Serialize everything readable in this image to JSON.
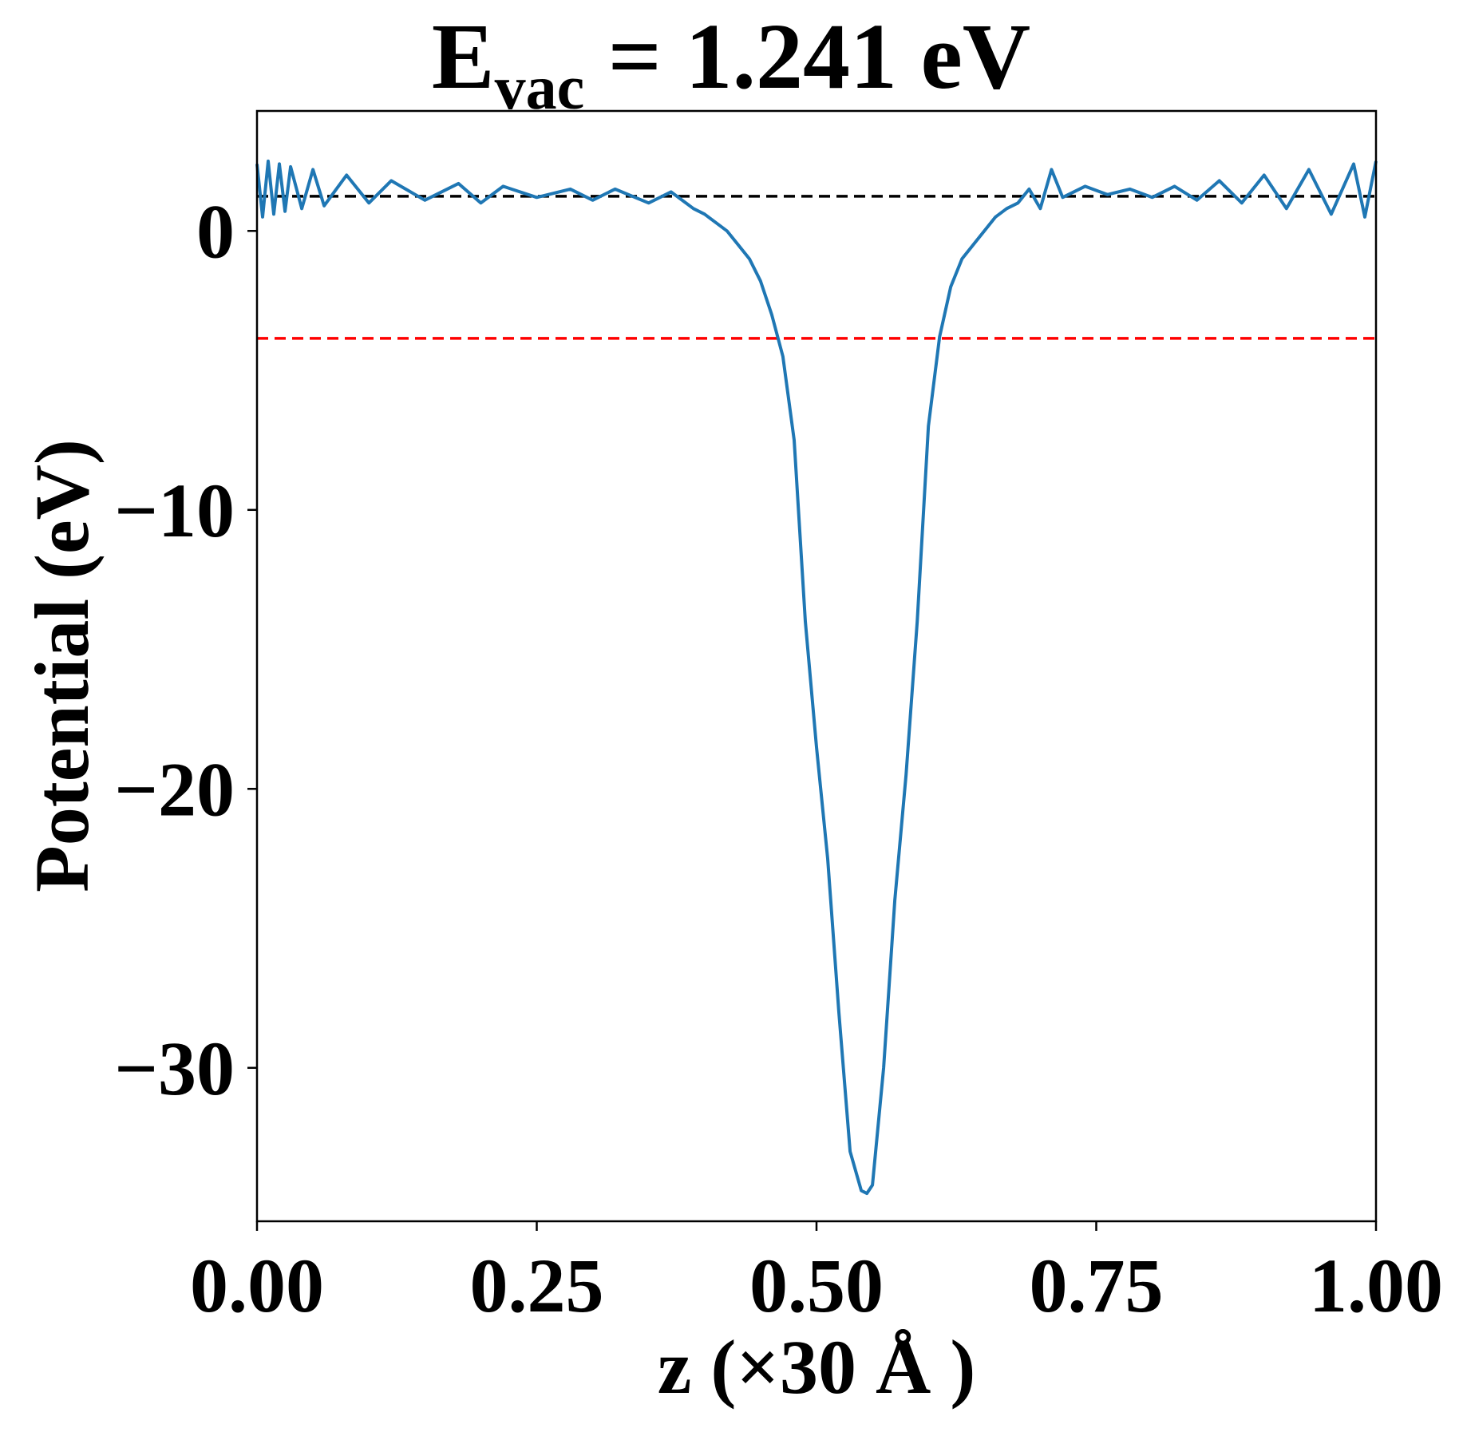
{
  "chart_data": {
    "type": "line",
    "title": {
      "main": "E",
      "subscript": "vac",
      "rest": " = 1.241 eV"
    },
    "xlabel": "z (×30 Å )",
    "ylabel": "Potential (eV)",
    "xlim": [
      0,
      1
    ],
    "ylim": [
      -35.5,
      4.3
    ],
    "xticks": [
      0,
      0.25,
      0.5,
      0.75,
      1.0
    ],
    "xtick_labels": [
      "0.00",
      "0.25",
      "0.50",
      "0.75",
      "1.00"
    ],
    "yticks": [
      0,
      -10,
      -20,
      -30
    ],
    "ytick_labels": [
      "0",
      "−10",
      "−20",
      "−30"
    ],
    "grid": false,
    "reference_lines": [
      {
        "y": 1.241,
        "color": "#000000",
        "style": "dashed"
      },
      {
        "y": -3.85,
        "color": "#ff0000",
        "style": "dashed"
      }
    ],
    "series": [
      {
        "color": "#1f77b4",
        "x": [
          0.0,
          0.005,
          0.01,
          0.015,
          0.02,
          0.025,
          0.03,
          0.04,
          0.05,
          0.06,
          0.08,
          0.1,
          0.12,
          0.15,
          0.18,
          0.2,
          0.22,
          0.25,
          0.28,
          0.3,
          0.32,
          0.35,
          0.37,
          0.39,
          0.4,
          0.41,
          0.42,
          0.43,
          0.44,
          0.45,
          0.46,
          0.47,
          0.48,
          0.49,
          0.5,
          0.51,
          0.52,
          0.53,
          0.54,
          0.545,
          0.55,
          0.56,
          0.57,
          0.58,
          0.59,
          0.6,
          0.61,
          0.62,
          0.63,
          0.64,
          0.65,
          0.66,
          0.67,
          0.68,
          0.69,
          0.7,
          0.71,
          0.72,
          0.74,
          0.76,
          0.78,
          0.8,
          0.82,
          0.84,
          0.86,
          0.88,
          0.9,
          0.92,
          0.94,
          0.96,
          0.98,
          0.99,
          1.0
        ],
        "y": [
          2.4,
          0.5,
          2.5,
          0.6,
          2.4,
          0.7,
          2.3,
          0.8,
          2.2,
          0.9,
          2.0,
          1.0,
          1.8,
          1.1,
          1.7,
          1.0,
          1.6,
          1.2,
          1.5,
          1.1,
          1.5,
          1.0,
          1.4,
          0.8,
          0.6,
          0.3,
          0.0,
          -0.5,
          -1.0,
          -1.8,
          -3.0,
          -4.5,
          -7.5,
          -14.0,
          -18.5,
          -22.5,
          -28.0,
          -33.0,
          -34.4,
          -34.5,
          -34.2,
          -30.0,
          -24.0,
          -19.5,
          -14.0,
          -7.0,
          -3.8,
          -2.0,
          -1.0,
          -0.5,
          0.0,
          0.5,
          0.8,
          1.0,
          1.5,
          0.8,
          2.2,
          1.2,
          1.6,
          1.3,
          1.5,
          1.2,
          1.6,
          1.1,
          1.8,
          1.0,
          2.0,
          0.8,
          2.2,
          0.6,
          2.4,
          0.5,
          2.5
        ]
      }
    ]
  }
}
